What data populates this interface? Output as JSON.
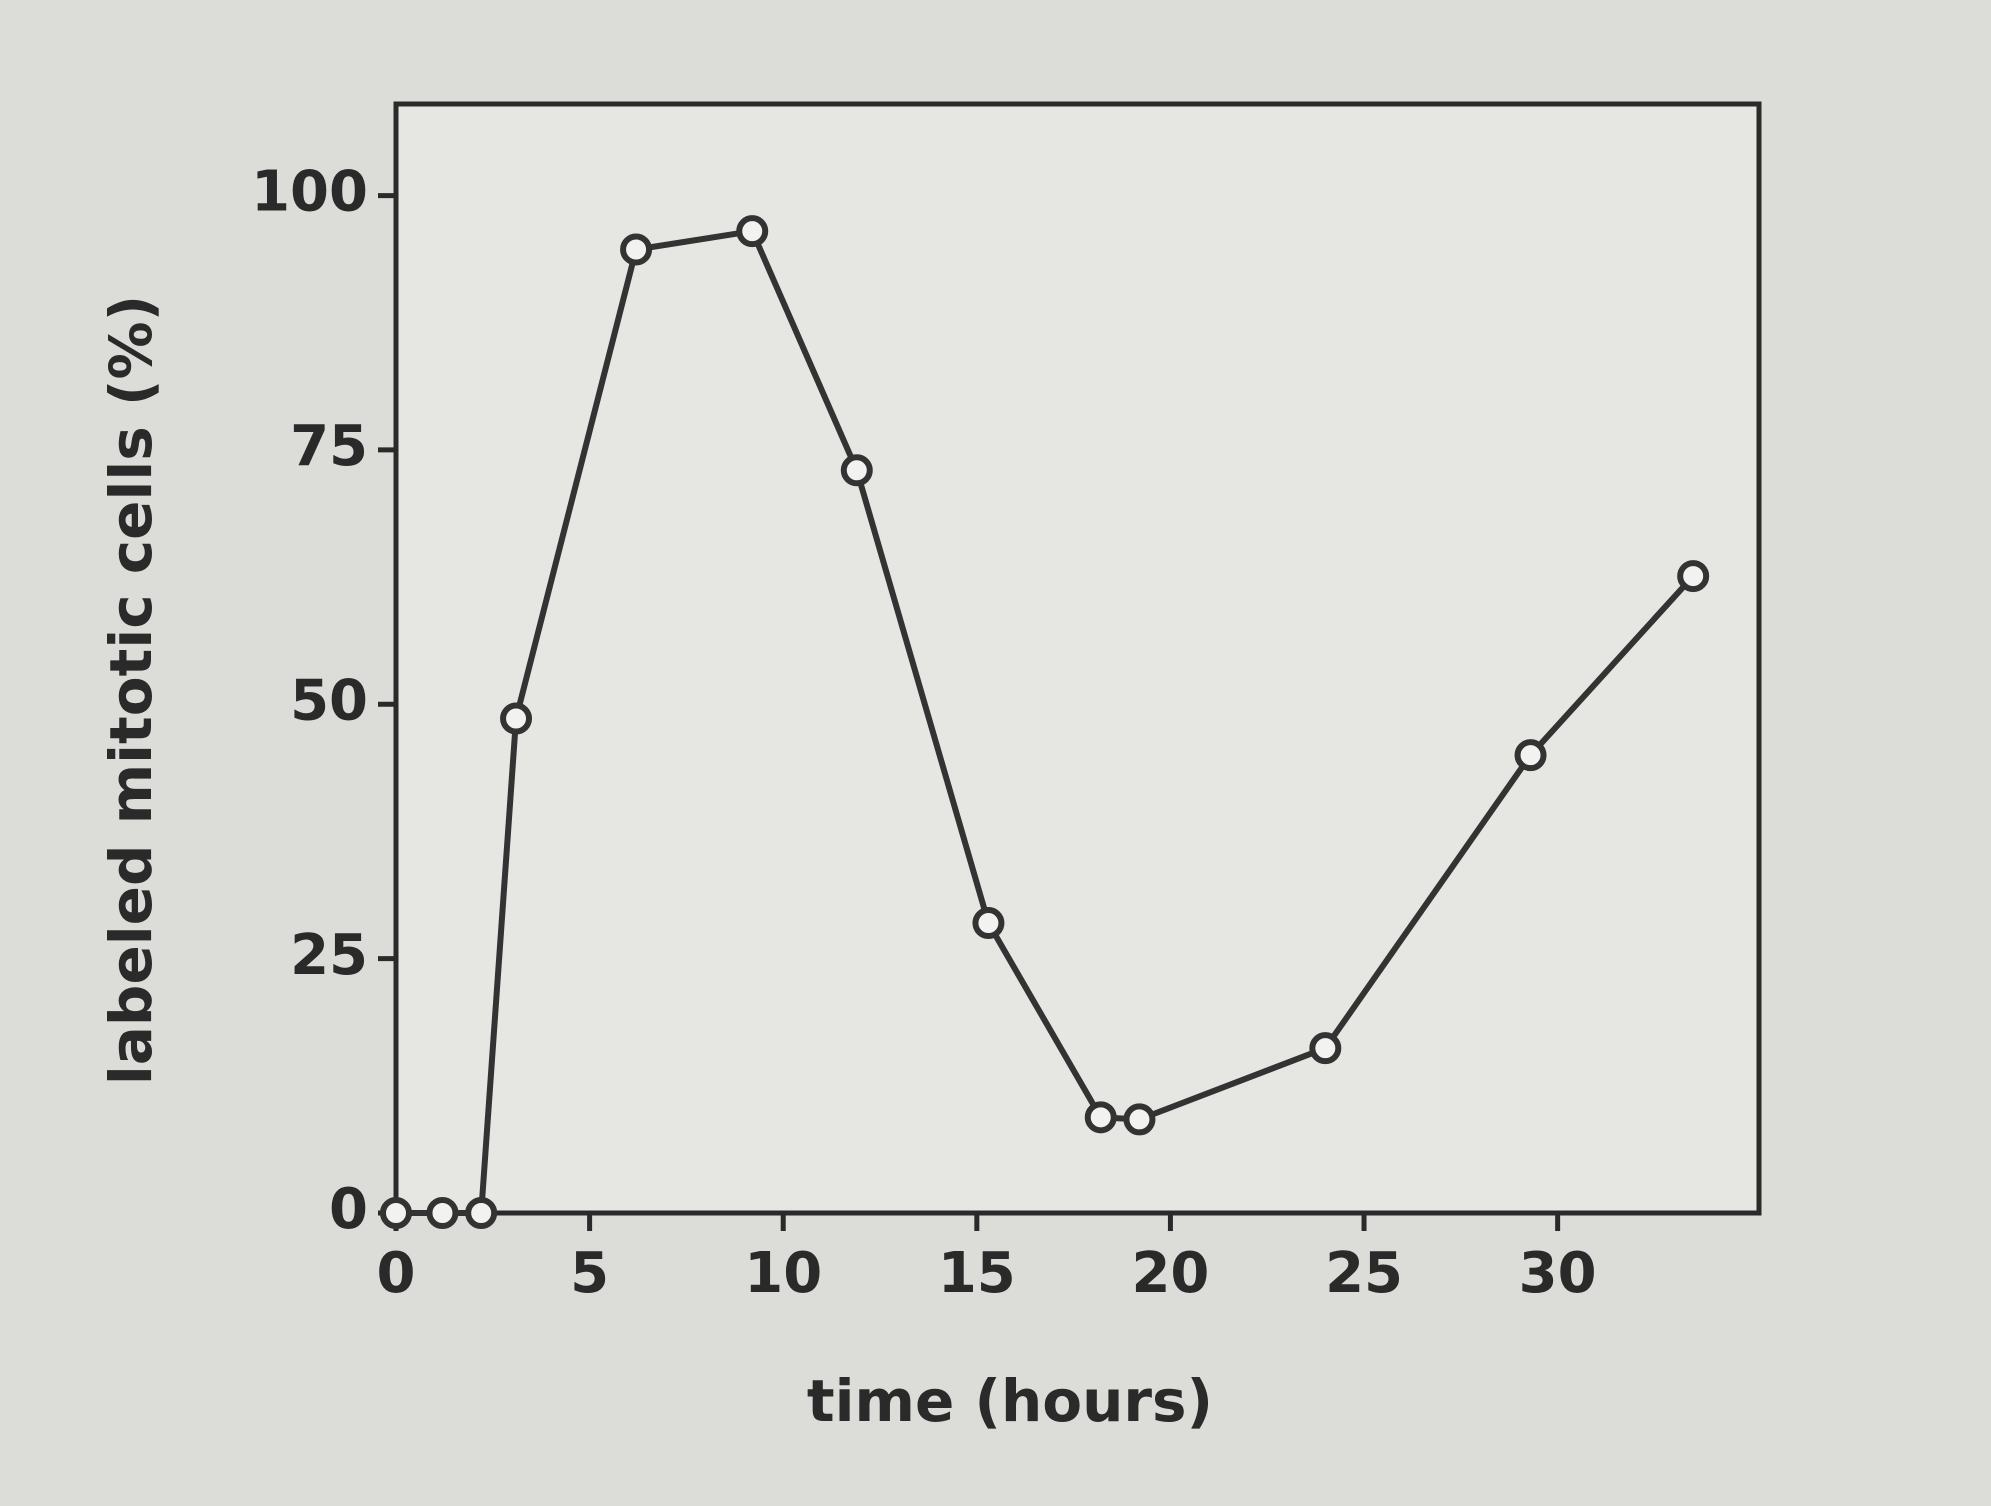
{
  "chart_data": {
    "type": "line",
    "x_label": "time (hours)",
    "y_label": "labeled mitotic cells (%)",
    "x": [
      0,
      1.2,
      2.2,
      3.1,
      6.2,
      9.2,
      11.9,
      15.3,
      18.2,
      19.2,
      24.0,
      29.3,
      33.5
    ],
    "series": [
      {
        "color": "#333333",
        "values": [
          0,
          0,
          0,
          48.6,
          94.7,
          96.5,
          73,
          28.5,
          9.4,
          9.2,
          16.2,
          45,
          62.6
        ]
      }
    ],
    "xlim": [
      0,
      35.2
    ],
    "xticks": [
      0,
      5,
      10,
      15,
      20,
      25,
      30
    ],
    "ylim": [
      0,
      109
    ],
    "yticks": [
      0,
      25,
      50,
      75,
      100
    ],
    "grid": false
  }
}
